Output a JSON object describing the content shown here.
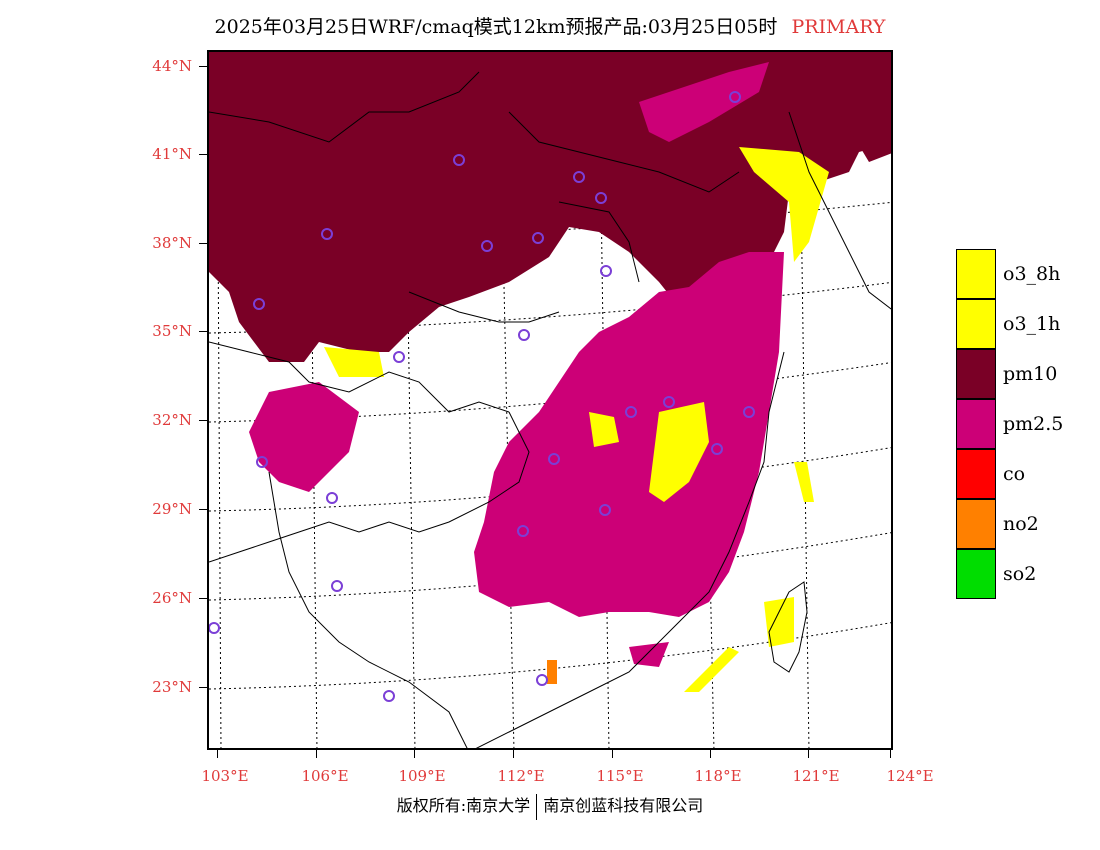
{
  "title": {
    "main": "2025年03月25日WRF/cmaq模式12km预报产品:03月25日05时",
    "tag": "PRIMARY"
  },
  "axes": {
    "lat_labels": [
      "44°N",
      "41°N",
      "38°N",
      "35°N",
      "32°N",
      "29°N",
      "26°N",
      "23°N"
    ],
    "lon_labels": [
      "103°E",
      "106°E",
      "109°E",
      "112°E",
      "115°E",
      "118°E",
      "121°E",
      "124°E"
    ]
  },
  "legend": [
    {
      "label": "o3_8h",
      "color": "#ffff00"
    },
    {
      "label": "o3_1h",
      "color": "#ffff00"
    },
    {
      "label": "pm10",
      "color": "#7a0026"
    },
    {
      "label": "pm2.5",
      "color": "#cc0077"
    },
    {
      "label": "co",
      "color": "#ff0000"
    },
    {
      "label": "no2",
      "color": "#ff8000"
    },
    {
      "label": "so2",
      "color": "#00dd00"
    }
  ],
  "footer": {
    "left": "版权所有:南京大学",
    "right": "南京创蓝科技有限公司"
  }
}
